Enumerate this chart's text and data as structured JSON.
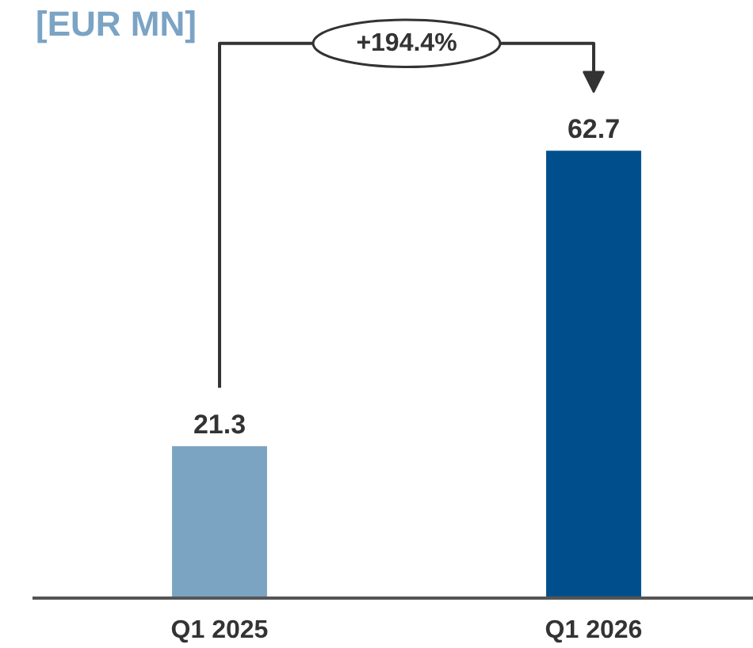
{
  "chart_data": {
    "type": "bar",
    "title": "[EUR MN]",
    "categories": [
      "Q1 2025",
      "Q1 2026"
    ],
    "values": [
      21.3,
      62.7
    ],
    "colors": [
      "#7ba3c2",
      "#004f8c"
    ],
    "data_labels": true,
    "annotations": [
      "+194.4%"
    ]
  }
}
